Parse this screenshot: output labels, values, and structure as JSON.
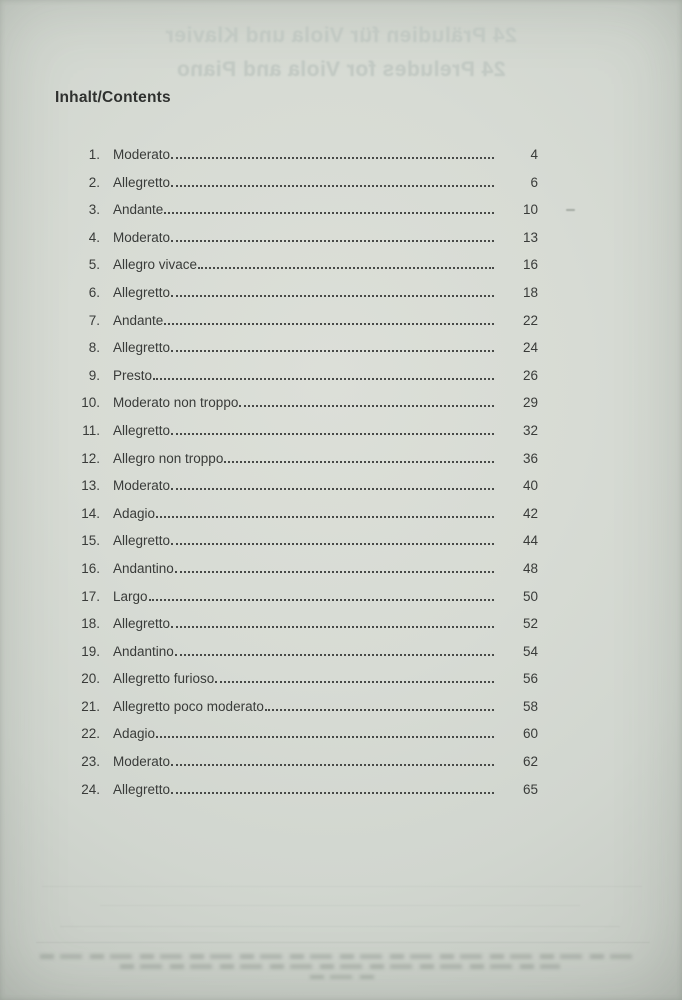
{
  "heading": "Inhalt/Contents",
  "showthrough": {
    "line1": "24 Präludien für Viola und Klavier",
    "line2": "24 Preludes for Viola and Piano"
  },
  "entries": [
    {
      "num": "1.",
      "title": "Moderato",
      "page": "4"
    },
    {
      "num": "2.",
      "title": "Allegretto",
      "page": "6"
    },
    {
      "num": "3.",
      "title": "Andante",
      "page": "10"
    },
    {
      "num": "4.",
      "title": "Moderato",
      "page": "13"
    },
    {
      "num": "5.",
      "title": "Allegro vivace",
      "page": "16"
    },
    {
      "num": "6.",
      "title": "Allegretto",
      "page": "18"
    },
    {
      "num": "7.",
      "title": "Andante",
      "page": "22"
    },
    {
      "num": "8.",
      "title": "Allegretto",
      "page": "24"
    },
    {
      "num": "9.",
      "title": "Presto",
      "page": "26"
    },
    {
      "num": "10.",
      "title": "Moderato non troppo",
      "page": "29"
    },
    {
      "num": "11.",
      "title": "Allegretto",
      "page": "32"
    },
    {
      "num": "12.",
      "title": "Allegro non troppo",
      "page": "36"
    },
    {
      "num": "13.",
      "title": "Moderato",
      "page": "40"
    },
    {
      "num": "14.",
      "title": "Adagio",
      "page": "42"
    },
    {
      "num": "15.",
      "title": "Allegretto",
      "page": "44"
    },
    {
      "num": "16.",
      "title": "Andantino",
      "page": "48"
    },
    {
      "num": "17.",
      "title": "Largo",
      "page": "50"
    },
    {
      "num": "18.",
      "title": "Allegretto",
      "page": "52"
    },
    {
      "num": "19.",
      "title": "Andantino",
      "page": "54"
    },
    {
      "num": "20.",
      "title": "Allegretto furioso",
      "page": "56"
    },
    {
      "num": "21.",
      "title": "Allegretto poco moderato",
      "page": "58"
    },
    {
      "num": "22.",
      "title": "Adagio",
      "page": "60"
    },
    {
      "num": "23.",
      "title": "Moderato",
      "page": "62"
    },
    {
      "num": "24.",
      "title": "Allegretto",
      "page": "65"
    }
  ],
  "colors": {
    "paper": "#d7dbd4",
    "ink": "#393b39",
    "showthrough": "#c2c9c3"
  }
}
